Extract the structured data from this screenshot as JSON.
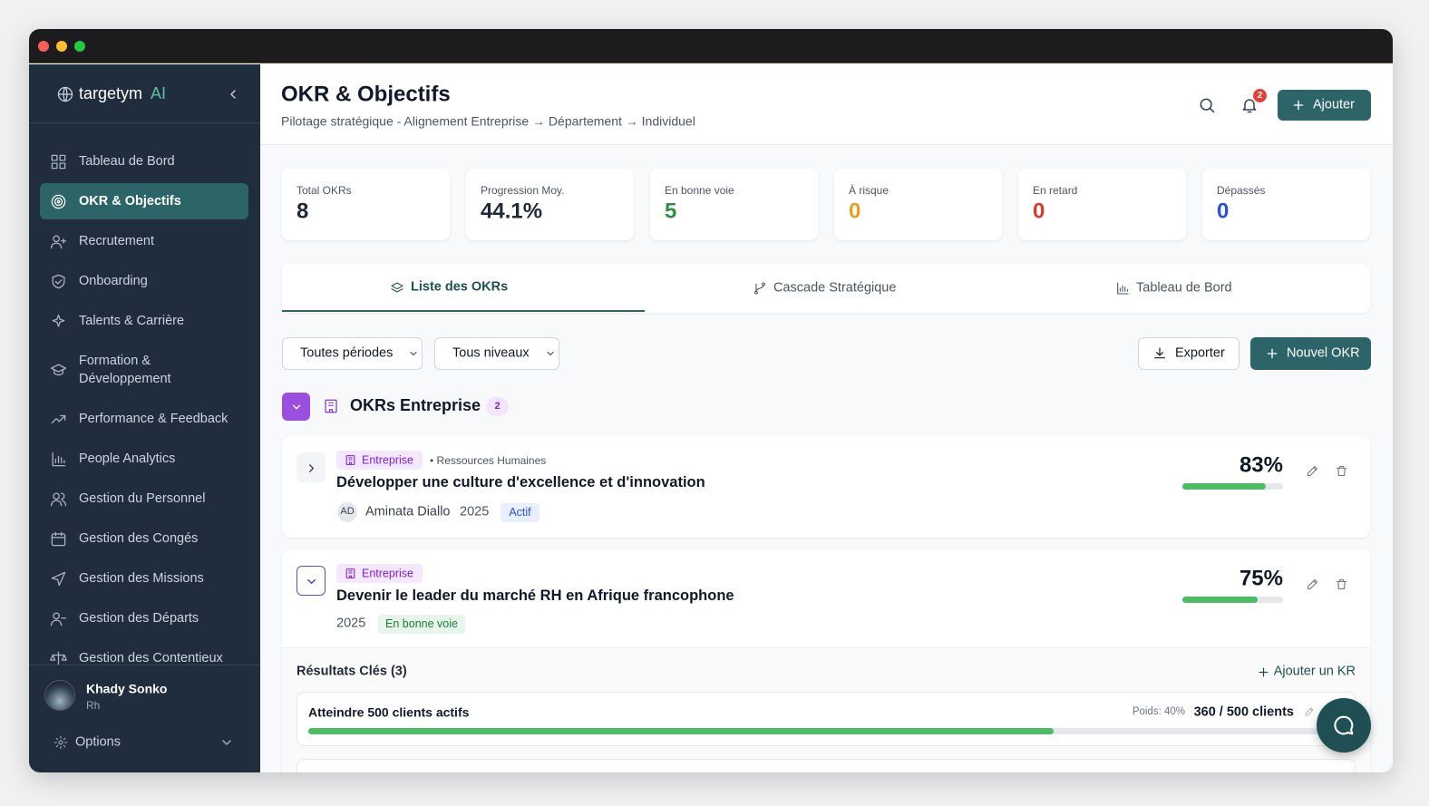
{
  "sidebar": {
    "brand": "targetym",
    "brand_suffix": "AI",
    "active": 1,
    "nav": [
      "Tableau de Bord",
      "OKR & Objectifs",
      "Recrutement",
      "Onboarding",
      "Talents & Carrière",
      "Formation & Développement",
      "Performance & Feedback",
      "People Analytics",
      "Gestion du Personnel",
      "Gestion des Congés",
      "Gestion des Missions",
      "Gestion des Départs",
      "Gestion des Contentieux"
    ],
    "user": {
      "name": "Khady Sonko",
      "role": "Rh"
    },
    "options": "Options"
  },
  "header": {
    "title": "OKR & Objectifs",
    "subtitle": "Pilotage stratégique - Alignement Entreprise → Département → Individuel",
    "notifications": "2",
    "add_button": "Ajouter"
  },
  "stats": [
    {
      "label": "Total OKRs",
      "value": "8",
      "color": "#1f2937"
    },
    {
      "label": "Progression Moy.",
      "value": "44.1%",
      "color": "#1f2937"
    },
    {
      "label": "En bonne voie",
      "value": "5",
      "color": "#2f8f46"
    },
    {
      "label": "À risque",
      "value": "0",
      "color": "#e0a21b"
    },
    {
      "label": "En retard",
      "value": "0",
      "color": "#d93a2b"
    },
    {
      "label": "Dépassés",
      "value": "0",
      "color": "#2b4fd9"
    }
  ],
  "tabs": {
    "active": 0,
    "items": [
      "Liste des OKRs",
      "Cascade Stratégique",
      "Tableau de Bord"
    ]
  },
  "filters": {
    "period": "Toutes périodes",
    "level": "Tous niveaux",
    "export": "Exporter",
    "new": "Nouvel OKR"
  },
  "group": {
    "title": "OKRs Entreprise",
    "count": "2"
  },
  "okrs": [
    {
      "level": "Entreprise",
      "department": "• Ressources Humaines",
      "title": "Développer une culture d'excellence et d'innovation",
      "owner_initials": "AD",
      "owner": "Aminata Diallo",
      "year": "2025",
      "status": "Actif",
      "progress": {
        "value": 83,
        "label": "83%"
      }
    },
    {
      "level": "Entreprise",
      "title": "Devenir le leader du marché RH en Afrique francophone",
      "year": "2025",
      "status": "En bonne voie",
      "progress": {
        "value": 75,
        "label": "75%"
      },
      "key_results": {
        "title": "Résultats Clés (3)",
        "add": "Ajouter un KR",
        "items": [
          {
            "title": "Atteindre 500 clients actifs",
            "weight": "Poids: 40%",
            "progress": {
              "current": 360,
              "target": 500,
              "label": "360 / 500 clients"
            }
          }
        ]
      }
    }
  ]
}
